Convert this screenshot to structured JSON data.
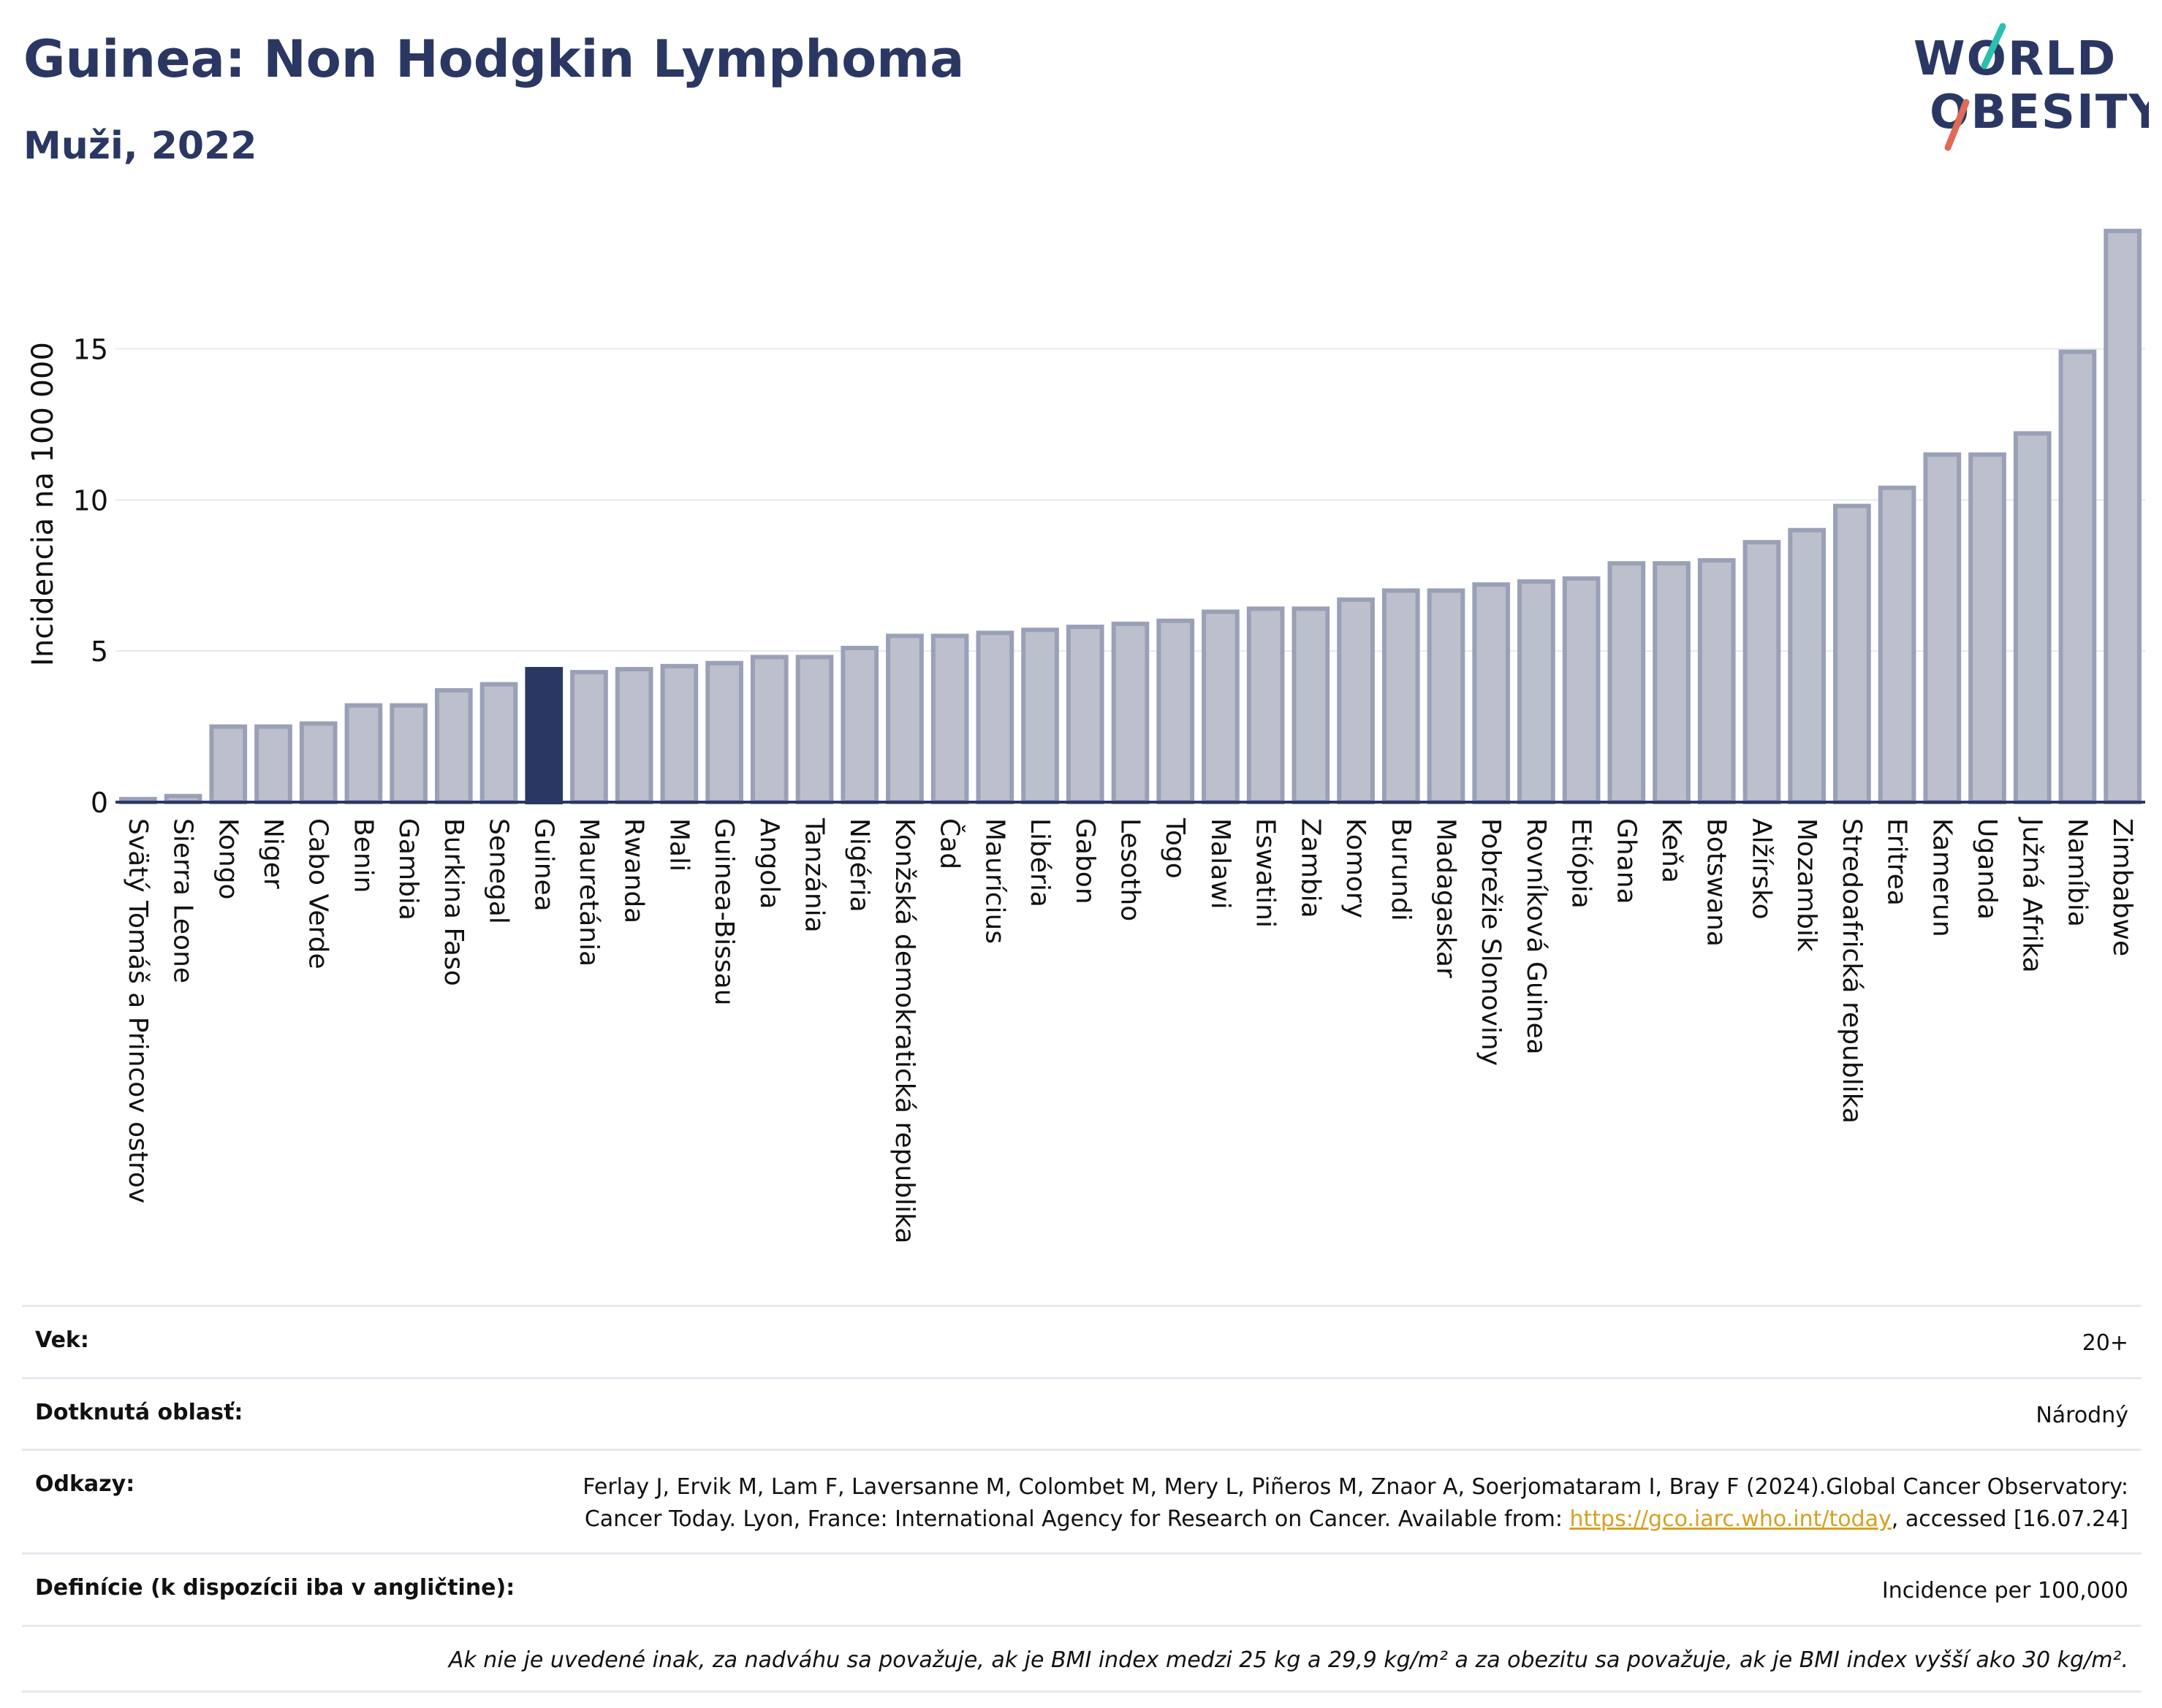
{
  "header": {
    "title": "Guinea: Non Hodgkin Lymphoma",
    "subtitle": "Muži, 2022"
  },
  "logo": {
    "line1": "WORLD",
    "line2": "OBESITY",
    "accent_colors": [
      "#2cbfb0",
      "#e06a55"
    ],
    "text_color": "#2b3763"
  },
  "colors": {
    "bar": "#bcc0cd",
    "bar_stroke": "#9aa0b6",
    "highlight": "#2b3763",
    "axis": "#2b3763",
    "grid": "#e6e9ef"
  },
  "chart_data": {
    "type": "bar",
    "title": "Guinea: Non Hodgkin Lymphoma",
    "subtitle": "Muži, 2022",
    "ylabel": "Incidencia na 100 000",
    "xlabel": "",
    "ylim": [
      0,
      19
    ],
    "yticks": [
      0,
      5,
      10,
      15
    ],
    "grid": true,
    "highlight": "Guinea",
    "categories": [
      "Svätý Tomáš a Princov ostrov",
      "Sierra Leone",
      "Kongo",
      "Niger",
      "Cabo Verde",
      "Benin",
      "Gambia",
      "Burkina Faso",
      "Senegal",
      "Guinea",
      "Mauretánia",
      "Rwanda",
      "Mali",
      "Guinea-Bissau",
      "Angola",
      "Tanzánia",
      "Nigéria",
      "Konžská demokratická republika",
      "Čad",
      "Maurícius",
      "Libéria",
      "Gabon",
      "Lesotho",
      "Togo",
      "Malawi",
      "Eswatini",
      "Zambia",
      "Komory",
      "Burundi",
      "Madagaskar",
      "Pobrežie Slonoviny",
      "Rovníková Guinea",
      "Etiópia",
      "Ghana",
      "Keňa",
      "Botswana",
      "Alžírsko",
      "Mozambik",
      "Stredoafrická republika",
      "Eritrea",
      "Kamerun",
      "Uganda",
      "Južná Afrika",
      "Namíbia",
      "Zimbabwe"
    ],
    "values": [
      0.1,
      0.2,
      2.5,
      2.5,
      2.6,
      3.2,
      3.2,
      3.7,
      3.9,
      4.4,
      4.3,
      4.4,
      4.5,
      4.6,
      4.8,
      4.8,
      5.1,
      5.5,
      5.5,
      5.6,
      5.7,
      5.8,
      5.9,
      6.0,
      6.3,
      6.4,
      6.4,
      6.7,
      7.0,
      7.0,
      7.2,
      7.3,
      7.4,
      7.9,
      7.9,
      8.0,
      8.6,
      9.0,
      9.8,
      10.4,
      11.5,
      11.5,
      12.2,
      14.9,
      18.9
    ]
  },
  "meta": {
    "age_label": "Vek:",
    "age_value": "20+",
    "area_label": "Dotknutá oblasť:",
    "area_value": "Národný",
    "refs_label": "Odkazy:",
    "refs_text1": "Ferlay J, Ervik M, Lam F, Laversanne M, Colombet M, Mery L, Piñeros M, Znaor A, Soerjomataram I, Bray F (2024).Global Cancer Observatory: Cancer Today. Lyon, France: International Agency for Research on Cancer. Available from: ",
    "refs_link": "https://gco.iarc.who.int/today",
    "refs_text2": ", accessed [16.07.24]",
    "def_label": "Definície (k dispozícii iba v angličtine):",
    "def_value": "Incidence per 100,000",
    "note": "Ak nie je uvedené inak, za nadváhu sa považuje, ak je BMI index medzi 25 kg a 29,9 kg/m² a za obezitu sa považuje, ak je BMI index vyšší ako 30 kg/m²."
  }
}
